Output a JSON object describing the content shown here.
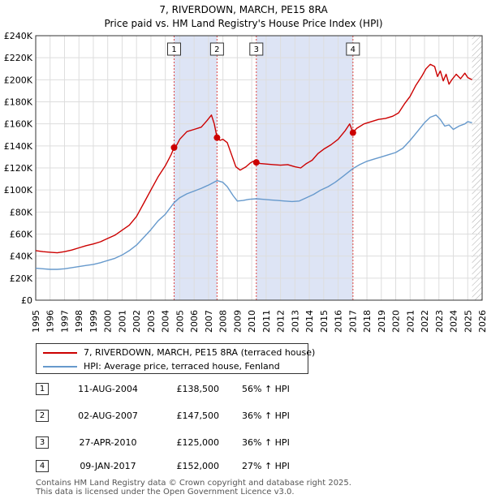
{
  "title_line1": "7, RIVERDOWN, MARCH, PE15 8RA",
  "title_line2": "Price paid vs. HM Land Registry's House Price Index (HPI)",
  "chart_data": {
    "type": "line",
    "xlim": [
      1995,
      2026
    ],
    "ylim": [
      0,
      240000
    ],
    "y_ticks": [
      {
        "value": 0,
        "label": "£0"
      },
      {
        "value": 20000,
        "label": "£20K"
      },
      {
        "value": 40000,
        "label": "£40K"
      },
      {
        "value": 60000,
        "label": "£60K"
      },
      {
        "value": 80000,
        "label": "£80K"
      },
      {
        "value": 100000,
        "label": "£100K"
      },
      {
        "value": 120000,
        "label": "£120K"
      },
      {
        "value": 140000,
        "label": "£140K"
      },
      {
        "value": 160000,
        "label": "£160K"
      },
      {
        "value": 180000,
        "label": "£180K"
      },
      {
        "value": 200000,
        "label": "£200K"
      },
      {
        "value": 220000,
        "label": "£220K"
      },
      {
        "value": 240000,
        "label": "£240K"
      }
    ],
    "x_ticks": [
      "1995",
      "1996",
      "1997",
      "1998",
      "1999",
      "2000",
      "2001",
      "2002",
      "2003",
      "2004",
      "2005",
      "2006",
      "2007",
      "2008",
      "2009",
      "2010",
      "2011",
      "2012",
      "2013",
      "2014",
      "2015",
      "2016",
      "2017",
      "2018",
      "2019",
      "2020",
      "2021",
      "2022",
      "2023",
      "2024",
      "2025",
      "2026"
    ],
    "grid": true,
    "series": [
      {
        "name": "7, RIVERDOWN, MARCH, PE15 8RA (terraced house)",
        "color": "#cc0000",
        "points": [
          [
            1995.0,
            45000
          ],
          [
            1995.5,
            44000
          ],
          [
            1996.0,
            43500
          ],
          [
            1996.5,
            43000
          ],
          [
            1997.0,
            44000
          ],
          [
            1997.5,
            45500
          ],
          [
            1998.0,
            47500
          ],
          [
            1998.5,
            49500
          ],
          [
            1999.0,
            51000
          ],
          [
            1999.5,
            53000
          ],
          [
            2000.0,
            56000
          ],
          [
            2000.5,
            59000
          ],
          [
            2001.0,
            63500
          ],
          [
            2001.5,
            68000
          ],
          [
            2002.0,
            76000
          ],
          [
            2002.5,
            88000
          ],
          [
            2003.0,
            100000
          ],
          [
            2003.5,
            112000
          ],
          [
            2004.0,
            122000
          ],
          [
            2004.4,
            132000
          ],
          [
            2004.61,
            138500
          ],
          [
            2004.8,
            141000
          ],
          [
            2005.0,
            146000
          ],
          [
            2005.5,
            153000
          ],
          [
            2006.0,
            155000
          ],
          [
            2006.5,
            157000
          ],
          [
            2006.9,
            163000
          ],
          [
            2007.2,
            168000
          ],
          [
            2007.4,
            160000
          ],
          [
            2007.59,
            147500
          ],
          [
            2007.8,
            145000
          ],
          [
            2008.0,
            146000
          ],
          [
            2008.3,
            143000
          ],
          [
            2008.6,
            132000
          ],
          [
            2008.9,
            121000
          ],
          [
            2009.2,
            118000
          ],
          [
            2009.6,
            121000
          ],
          [
            2009.9,
            124500
          ],
          [
            2010.1,
            126000
          ],
          [
            2010.32,
            125000
          ],
          [
            2010.6,
            124000
          ],
          [
            2011.0,
            123500
          ],
          [
            2011.5,
            123000
          ],
          [
            2012.0,
            122500
          ],
          [
            2012.5,
            123000
          ],
          [
            2013.0,
            121000
          ],
          [
            2013.4,
            120000
          ],
          [
            2013.8,
            124000
          ],
          [
            2014.2,
            127000
          ],
          [
            2014.6,
            133000
          ],
          [
            2015.0,
            137000
          ],
          [
            2015.5,
            141000
          ],
          [
            2016.0,
            146000
          ],
          [
            2016.5,
            154000
          ],
          [
            2016.8,
            160000
          ],
          [
            2017.03,
            152000
          ],
          [
            2017.3,
            156000
          ],
          [
            2017.8,
            160000
          ],
          [
            2018.3,
            162000
          ],
          [
            2018.8,
            164000
          ],
          [
            2019.3,
            165000
          ],
          [
            2019.8,
            167000
          ],
          [
            2020.2,
            170000
          ],
          [
            2020.6,
            178000
          ],
          [
            2021.0,
            185000
          ],
          [
            2021.4,
            195000
          ],
          [
            2021.8,
            203000
          ],
          [
            2022.1,
            210000
          ],
          [
            2022.4,
            214000
          ],
          [
            2022.7,
            212000
          ],
          [
            2022.9,
            203000
          ],
          [
            2023.1,
            208000
          ],
          [
            2023.3,
            199000
          ],
          [
            2023.5,
            205000
          ],
          [
            2023.7,
            196000
          ],
          [
            2023.9,
            200000
          ],
          [
            2024.2,
            205000
          ],
          [
            2024.5,
            201000
          ],
          [
            2024.8,
            206000
          ],
          [
            2025.0,
            202000
          ],
          [
            2025.3,
            200000
          ]
        ]
      },
      {
        "name": "HPI: Average price, terraced house, Fenland",
        "color": "#6699cc",
        "points": [
          [
            1995.0,
            29000
          ],
          [
            1995.5,
            28500
          ],
          [
            1996.0,
            28000
          ],
          [
            1996.5,
            28000
          ],
          [
            1997.0,
            28500
          ],
          [
            1997.5,
            29500
          ],
          [
            1998.0,
            30500
          ],
          [
            1998.5,
            31500
          ],
          [
            1999.0,
            32500
          ],
          [
            1999.5,
            34000
          ],
          [
            2000.0,
            36000
          ],
          [
            2000.5,
            38000
          ],
          [
            2001.0,
            41000
          ],
          [
            2001.5,
            45000
          ],
          [
            2002.0,
            50000
          ],
          [
            2002.5,
            57000
          ],
          [
            2003.0,
            64000
          ],
          [
            2003.5,
            72000
          ],
          [
            2004.0,
            78000
          ],
          [
            2004.61,
            88500
          ],
          [
            2005.0,
            93000
          ],
          [
            2005.5,
            96500
          ],
          [
            2006.0,
            99000
          ],
          [
            2006.5,
            101500
          ],
          [
            2007.0,
            104500
          ],
          [
            2007.59,
            108500
          ],
          [
            2008.0,
            107000
          ],
          [
            2008.3,
            103000
          ],
          [
            2008.7,
            95000
          ],
          [
            2009.0,
            90000
          ],
          [
            2009.4,
            90500
          ],
          [
            2009.8,
            91500
          ],
          [
            2010.32,
            92000
          ],
          [
            2010.8,
            91500
          ],
          [
            2011.3,
            91000
          ],
          [
            2011.8,
            90500
          ],
          [
            2012.3,
            90000
          ],
          [
            2012.8,
            89500
          ],
          [
            2013.3,
            90000
          ],
          [
            2013.8,
            93000
          ],
          [
            2014.3,
            96000
          ],
          [
            2014.8,
            100000
          ],
          [
            2015.3,
            103000
          ],
          [
            2015.8,
            107000
          ],
          [
            2016.3,
            112000
          ],
          [
            2017.03,
            119500
          ],
          [
            2017.5,
            123000
          ],
          [
            2018.0,
            126000
          ],
          [
            2018.5,
            128000
          ],
          [
            2019.0,
            130000
          ],
          [
            2019.5,
            132000
          ],
          [
            2020.0,
            134000
          ],
          [
            2020.5,
            138000
          ],
          [
            2021.0,
            145000
          ],
          [
            2021.5,
            153000
          ],
          [
            2022.0,
            161000
          ],
          [
            2022.4,
            166000
          ],
          [
            2022.8,
            168000
          ],
          [
            2023.1,
            164000
          ],
          [
            2023.4,
            158000
          ],
          [
            2023.7,
            159000
          ],
          [
            2024.0,
            155000
          ],
          [
            2024.4,
            158000
          ],
          [
            2024.8,
            160000
          ],
          [
            2025.0,
            162000
          ],
          [
            2025.3,
            161000
          ]
        ]
      }
    ],
    "sales": [
      {
        "num": "1",
        "x": 2004.61,
        "value": 138500
      },
      {
        "num": "2",
        "x": 2007.59,
        "value": 147500
      },
      {
        "num": "3",
        "x": 2010.32,
        "value": 125000
      },
      {
        "num": "4",
        "x": 2017.03,
        "value": 152000
      }
    ],
    "shaded_ranges": [
      [
        2004.61,
        2007.59
      ],
      [
        2010.32,
        2017.03
      ]
    ],
    "forecast_from": 2025.3
  },
  "legend": {
    "property_label": "7, RIVERDOWN, MARCH, PE15 8RA (terraced house)",
    "hpi_label": "HPI: Average price, terraced house, Fenland"
  },
  "sales_table": [
    {
      "num": "1",
      "date": "11-AUG-2004",
      "price": "£138,500",
      "hpi": "56% ↑ HPI"
    },
    {
      "num": "2",
      "date": "02-AUG-2007",
      "price": "£147,500",
      "hpi": "36% ↑ HPI"
    },
    {
      "num": "3",
      "date": "27-APR-2010",
      "price": "£125,000",
      "hpi": "36% ↑ HPI"
    },
    {
      "num": "4",
      "date": "09-JAN-2017",
      "price": "£152,000",
      "hpi": "27% ↑ HPI"
    }
  ],
  "footer": {
    "line1": "Contains HM Land Registry data © Crown copyright and database right 2025.",
    "line2": "This data is licensed under the Open Government Licence v3.0."
  },
  "colors": {
    "property": "#cc0000",
    "hpi": "#6699cc",
    "shade": "#dde4f5",
    "grid": "#dddddd"
  }
}
